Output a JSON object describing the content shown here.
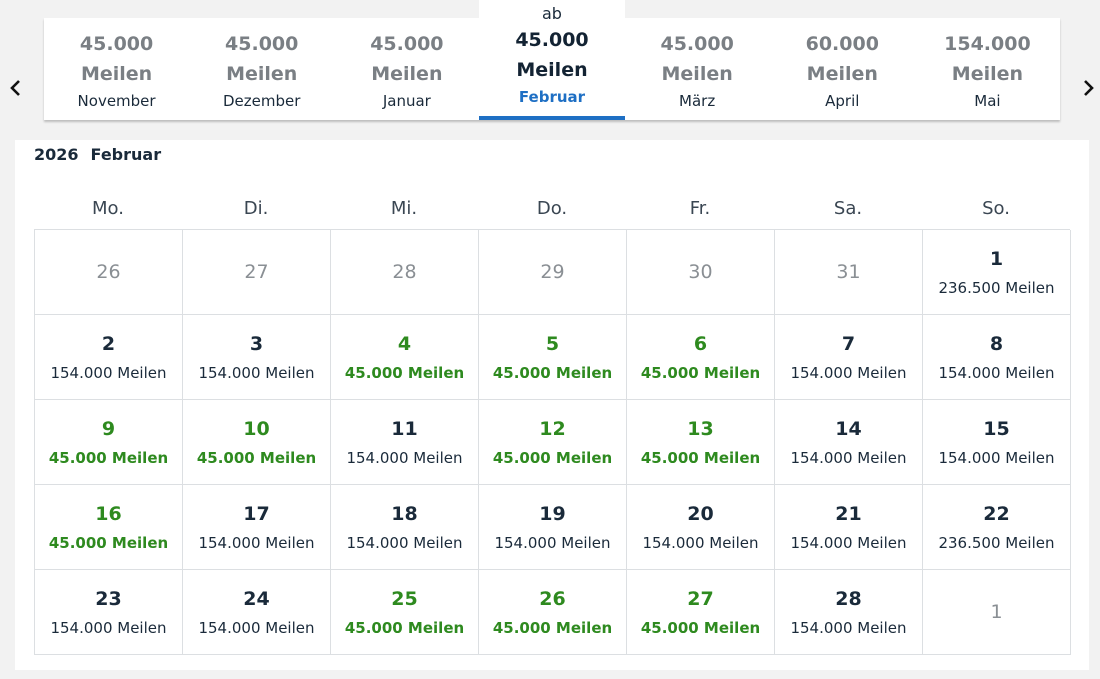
{
  "months": [
    {
      "price": "45.000",
      "unit": "Meilen",
      "name": "November"
    },
    {
      "price": "45.000",
      "unit": "Meilen",
      "name": "Dezember"
    },
    {
      "price": "45.000",
      "unit": "Meilen",
      "name": "Januar"
    },
    {
      "prefix": "ab",
      "price": "45.000",
      "unit": "Meilen",
      "name": "Februar"
    },
    {
      "price": "45.000",
      "unit": "Meilen",
      "name": "März"
    },
    {
      "price": "60.000",
      "unit": "Meilen",
      "name": "April"
    },
    {
      "price": "154.000",
      "unit": "Meilen",
      "name": "Mai"
    }
  ],
  "navigation": {
    "prev_icon": "chevron-left-icon",
    "next_icon": "chevron-right-icon"
  },
  "calendar": {
    "year": "2026",
    "month": "Februar",
    "weekdays": [
      "Mo.",
      "Di.",
      "Mi.",
      "Do.",
      "Fr.",
      "Sa.",
      "So."
    ],
    "days": [
      {
        "n": "26",
        "out": true
      },
      {
        "n": "27",
        "out": true
      },
      {
        "n": "28",
        "out": true
      },
      {
        "n": "29",
        "out": true
      },
      {
        "n": "30",
        "out": true
      },
      {
        "n": "31",
        "out": true
      },
      {
        "n": "1",
        "price": "236.500 Meilen"
      },
      {
        "n": "2",
        "price": "154.000 Meilen"
      },
      {
        "n": "3",
        "price": "154.000 Meilen"
      },
      {
        "n": "4",
        "price": "45.000 Meilen",
        "cheap": true
      },
      {
        "n": "5",
        "price": "45.000 Meilen",
        "cheap": true
      },
      {
        "n": "6",
        "price": "45.000 Meilen",
        "cheap": true
      },
      {
        "n": "7",
        "price": "154.000 Meilen"
      },
      {
        "n": "8",
        "price": "154.000 Meilen"
      },
      {
        "n": "9",
        "price": "45.000 Meilen",
        "cheap": true
      },
      {
        "n": "10",
        "price": "45.000 Meilen",
        "cheap": true
      },
      {
        "n": "11",
        "price": "154.000 Meilen"
      },
      {
        "n": "12",
        "price": "45.000 Meilen",
        "cheap": true
      },
      {
        "n": "13",
        "price": "45.000 Meilen",
        "cheap": true
      },
      {
        "n": "14",
        "price": "154.000 Meilen"
      },
      {
        "n": "15",
        "price": "154.000 Meilen"
      },
      {
        "n": "16",
        "price": "45.000 Meilen",
        "cheap": true
      },
      {
        "n": "17",
        "price": "154.000 Meilen"
      },
      {
        "n": "18",
        "price": "154.000 Meilen"
      },
      {
        "n": "19",
        "price": "154.000 Meilen"
      },
      {
        "n": "20",
        "price": "154.000 Meilen"
      },
      {
        "n": "21",
        "price": "154.000 Meilen"
      },
      {
        "n": "22",
        "price": "236.500 Meilen"
      },
      {
        "n": "23",
        "price": "154.000 Meilen"
      },
      {
        "n": "24",
        "price": "154.000 Meilen"
      },
      {
        "n": "25",
        "price": "45.000 Meilen",
        "cheap": true
      },
      {
        "n": "26",
        "price": "45.000 Meilen",
        "cheap": true
      },
      {
        "n": "27",
        "price": "45.000 Meilen",
        "cheap": true
      },
      {
        "n": "28",
        "price": "154.000 Meilen"
      },
      {
        "n": "1",
        "out": true
      }
    ]
  },
  "colors": {
    "accent": "#1e6fc4",
    "cheap": "#2e8a1f",
    "text": "#1a2a3a",
    "muted": "#7a7f84"
  }
}
